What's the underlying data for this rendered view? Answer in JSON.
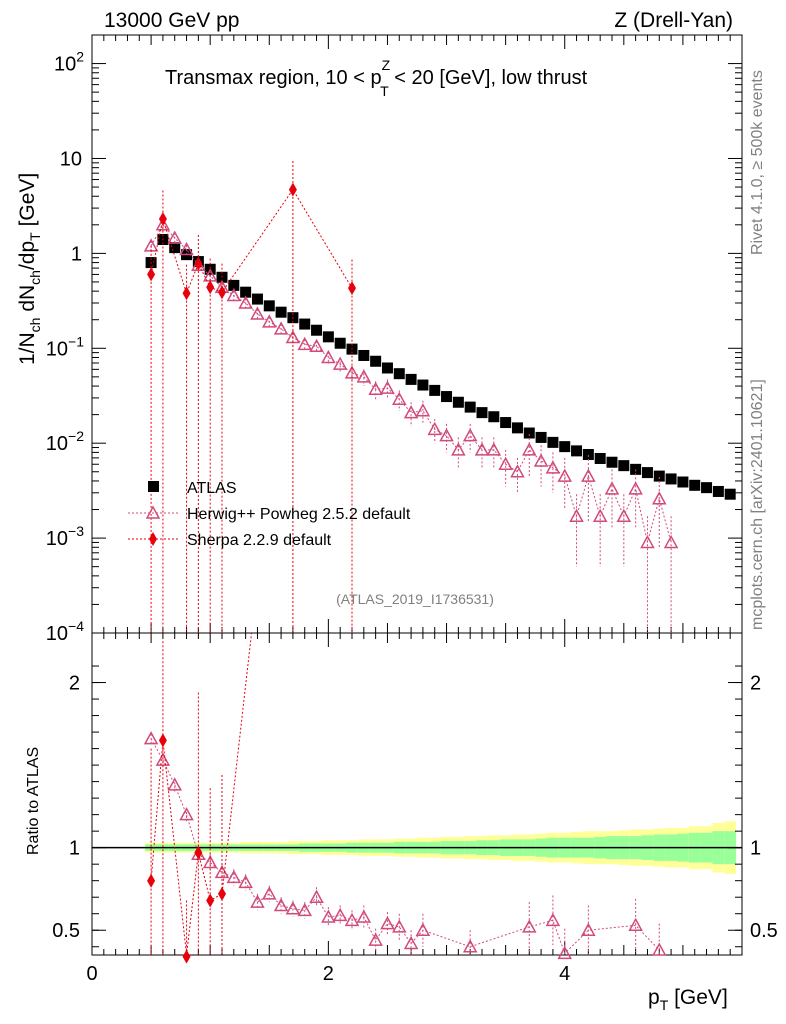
{
  "header": {
    "left": "13000 GeV pp",
    "right": "Z (Drell-Yan)"
  },
  "side_labels": {
    "rivet": "Rivet 4.1.0, ≥ 500k events",
    "mcplots": "mcplots.cern.ch [arXiv:2401.10621]"
  },
  "chart_data": [
    {
      "type": "scatter",
      "panel": "main",
      "title_parts": {
        "pre": "Transmax region, 10 < p",
        "sup": "Z",
        "sub": "T",
        "post": " < 20 [GeV], low thrust"
      },
      "ylabel_parts": {
        "a": "1/N",
        "a_sub": "ch",
        "b": " dN",
        "b_sub": "ch",
        "c": "/dp",
        "c_sub": "T",
        "d": " [GeV]"
      },
      "yscale": "log",
      "ylim": [
        0.0001,
        200
      ],
      "xlim": [
        0,
        5.5
      ],
      "y_ticks": [
        {
          "label": "10",
          "exp": "2",
          "value": 100
        },
        {
          "label": "10",
          "exp": "",
          "value": 10
        },
        {
          "label": "1",
          "exp": "",
          "value": 1
        },
        {
          "label": "10",
          "exp": "−1",
          "value": 0.1
        },
        {
          "label": "10",
          "exp": "−2",
          "value": 0.01
        },
        {
          "label": "10",
          "exp": "−3",
          "value": 0.001
        },
        {
          "label": "10",
          "exp": "−4",
          "value": 0.0001
        }
      ],
      "watermark": "(ATLAS_2019_I1736531)",
      "legend": [
        {
          "label": "ATLAS",
          "marker": "square",
          "color": "#000000"
        },
        {
          "label": "Herwig++ Powheg 2.5.2 default",
          "marker": "open-triangle",
          "color": "#d04a7c"
        },
        {
          "label": "Sherpa 2.2.9 default",
          "marker": "diamond",
          "color": "#e8000b"
        }
      ],
      "series": [
        {
          "name": "ATLAS",
          "color": "#000000",
          "x": [
            0.5,
            0.6,
            0.7,
            0.8,
            0.9,
            1.0,
            1.1,
            1.2,
            1.3,
            1.4,
            1.5,
            1.6,
            1.7,
            1.8,
            1.9,
            2.0,
            2.1,
            2.2,
            2.3,
            2.4,
            2.5,
            2.6,
            2.7,
            2.8,
            2.9,
            3.0,
            3.1,
            3.2,
            3.3,
            3.4,
            3.5,
            3.6,
            3.7,
            3.8,
            3.9,
            4.0,
            4.1,
            4.2,
            4.3,
            4.4,
            4.5,
            4.6,
            4.7,
            4.8,
            4.9,
            5.0,
            5.1,
            5.2,
            5.3,
            5.4
          ],
          "y": [
            0.8,
            1.4,
            1.15,
            0.97,
            0.82,
            0.68,
            0.56,
            0.46,
            0.39,
            0.33,
            0.28,
            0.24,
            0.21,
            0.18,
            0.155,
            0.132,
            0.113,
            0.098,
            0.084,
            0.073,
            0.062,
            0.054,
            0.047,
            0.041,
            0.036,
            0.031,
            0.027,
            0.024,
            0.021,
            0.019,
            0.0165,
            0.0145,
            0.0128,
            0.0115,
            0.0102,
            0.0092,
            0.0083,
            0.0076,
            0.0069,
            0.0063,
            0.0058,
            0.0053,
            0.0049,
            0.0045,
            0.0042,
            0.0039,
            0.0036,
            0.0034,
            0.0031,
            0.0029
          ]
        },
        {
          "name": "Herwig++ Powheg 2.5.2 default",
          "color": "#d04a7c",
          "x": [
            0.5,
            0.6,
            0.7,
            0.8,
            0.9,
            1.0,
            1.1,
            1.2,
            1.3,
            1.4,
            1.5,
            1.6,
            1.7,
            1.8,
            1.9,
            2.0,
            2.1,
            2.2,
            2.3,
            2.4,
            2.5,
            2.6,
            2.7,
            2.8,
            2.9,
            3.0,
            3.1,
            3.2,
            3.3,
            3.4,
            3.5,
            3.6,
            3.7,
            3.8,
            3.9,
            4.0,
            4.1,
            4.2,
            4.3,
            4.4,
            4.5,
            4.6,
            4.7,
            4.8,
            4.9
          ],
          "y": [
            1.2,
            2.0,
            1.45,
            1.1,
            0.75,
            0.58,
            0.44,
            0.36,
            0.3,
            0.23,
            0.19,
            0.16,
            0.13,
            0.11,
            0.105,
            0.08,
            0.068,
            0.055,
            0.05,
            0.037,
            0.038,
            0.029,
            0.021,
            0.022,
            0.014,
            0.012,
            0.0085,
            0.012,
            0.0085,
            0.0085,
            0.006,
            0.005,
            0.0085,
            0.0065,
            0.0055,
            0.0045,
            0.0017,
            0.0045,
            0.0017,
            0.0033,
            0.0017,
            0.0033,
            0.0009,
            0.0026,
            0.0009
          ],
          "y_err": [
            0.15,
            0.3,
            0.2,
            0.12,
            0.08,
            0.07,
            0.05,
            0.04,
            0.035,
            0.03,
            0.025,
            0.02,
            0.018,
            0.015,
            0.015,
            0.012,
            0.012,
            0.01,
            0.01,
            0.008,
            0.009,
            0.007,
            0.006,
            0.006,
            0.004,
            0.004,
            0.003,
            0.004,
            0.003,
            0.003,
            0.0025,
            0.002,
            0.004,
            0.003,
            0.0025,
            0.0025,
            0.0012,
            0.003,
            0.0012,
            0.002,
            0.0012,
            0.002,
            0.0008,
            0.0018,
            0.0008
          ]
        },
        {
          "name": "Sherpa 2.2.9 default",
          "color": "#e8000b",
          "x": [
            0.5,
            0.6,
            0.8,
            0.9,
            1.0,
            1.1,
            1.7,
            2.2
          ],
          "y": [
            0.6,
            2.3,
            0.38,
            0.78,
            0.44,
            0.39,
            4.7,
            0.43
          ],
          "y_err": [
            0.6,
            2.3,
            0.38,
            0.78,
            0.44,
            0.39,
            4.7,
            0.43
          ]
        }
      ]
    },
    {
      "type": "scatter",
      "panel": "ratio",
      "ylabel": "Ratio to ATLAS",
      "xlabel_parts": {
        "a": "p",
        "a_sub": "T",
        "b": " [GeV]"
      },
      "xlim": [
        0,
        5.5
      ],
      "ylim": [
        0.35,
        2.3
      ],
      "x_ticks": [
        0,
        2,
        4
      ],
      "y_ticks": [
        0.5,
        1,
        2
      ],
      "band_rel_inner": [
        0.02,
        0.02,
        0.02,
        0.02,
        0.02,
        0.02,
        0.02,
        0.02,
        0.02,
        0.02,
        0.02,
        0.02,
        0.02,
        0.025,
        0.025,
        0.025,
        0.025,
        0.03,
        0.03,
        0.03,
        0.03,
        0.035,
        0.035,
        0.035,
        0.035,
        0.04,
        0.04,
        0.04,
        0.045,
        0.045,
        0.05,
        0.05,
        0.05,
        0.055,
        0.06,
        0.06,
        0.06,
        0.06,
        0.065,
        0.07,
        0.07,
        0.07,
        0.075,
        0.08,
        0.08,
        0.085,
        0.09,
        0.09,
        0.1,
        0.1
      ],
      "band_rel_outer": [
        0.03,
        0.03,
        0.03,
        0.03,
        0.03,
        0.03,
        0.03,
        0.03,
        0.035,
        0.035,
        0.035,
        0.035,
        0.04,
        0.04,
        0.04,
        0.045,
        0.045,
        0.045,
        0.05,
        0.05,
        0.05,
        0.055,
        0.055,
        0.06,
        0.06,
        0.065,
        0.065,
        0.07,
        0.07,
        0.075,
        0.075,
        0.08,
        0.08,
        0.085,
        0.09,
        0.09,
        0.095,
        0.1,
        0.1,
        0.1,
        0.105,
        0.11,
        0.11,
        0.115,
        0.12,
        0.12,
        0.13,
        0.13,
        0.15,
        0.16
      ],
      "series": [
        {
          "name": "Herwig++ Powheg 2.5.2 default",
          "color": "#d04a7c",
          "x": [
            0.5,
            0.6,
            0.7,
            0.8,
            0.9,
            1.0,
            1.1,
            1.2,
            1.3,
            1.4,
            1.5,
            1.6,
            1.7,
            1.8,
            1.9,
            2.0,
            2.1,
            2.2,
            2.3,
            2.4,
            2.5,
            2.6,
            2.7,
            2.8,
            3.2,
            3.7,
            3.9,
            4.0,
            4.2,
            4.6,
            4.8
          ],
          "y": [
            1.66,
            1.53,
            1.38,
            1.2,
            0.96,
            0.91,
            0.85,
            0.82,
            0.79,
            0.67,
            0.72,
            0.65,
            0.63,
            0.62,
            0.7,
            0.58,
            0.59,
            0.56,
            0.58,
            0.44,
            0.54,
            0.52,
            0.42,
            0.5,
            0.4,
            0.52,
            0.56,
            0.36,
            0.5,
            0.53,
            0.38
          ],
          "y_err": [
            0.03,
            0.04,
            0.04,
            0.04,
            0.05,
            0.05,
            0.05,
            0.05,
            0.05,
            0.05,
            0.05,
            0.05,
            0.05,
            0.05,
            0.06,
            0.06,
            0.06,
            0.06,
            0.07,
            0.07,
            0.07,
            0.08,
            0.08,
            0.1,
            0.1,
            0.15,
            0.15,
            0.15,
            0.15,
            0.16,
            0.16
          ]
        },
        {
          "name": "Sherpa 2.2.9 default",
          "color": "#e8000b",
          "x": [
            0.5,
            0.6,
            0.8,
            0.9,
            1.0,
            1.1
          ],
          "y": [
            0.8,
            1.65,
            0.34,
            0.97,
            0.68,
            0.72
          ],
          "y_err": [
            0.8,
            0.6,
            0.34,
            0.97,
            0.68,
            0.72
          ]
        }
      ]
    }
  ]
}
